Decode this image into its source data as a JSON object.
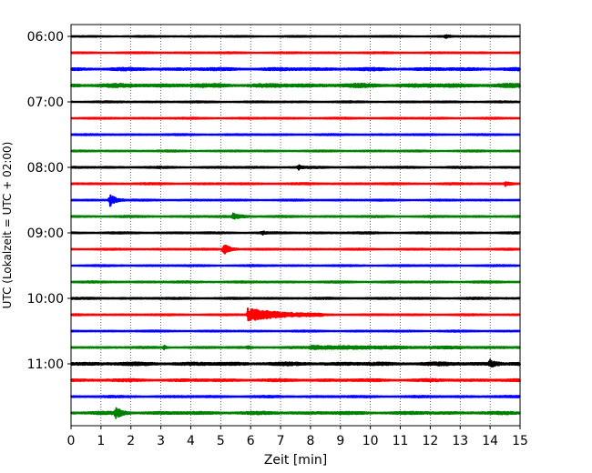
{
  "chart_data": {
    "type": "line",
    "title": "",
    "xlabel": "Zeit  [min]",
    "ylabel": "UTC (Lokalzeit = UTC + 02:00)",
    "xlim": [
      0,
      15
    ],
    "x_ticks": [
      "0",
      "1",
      "2",
      "3",
      "4",
      "5",
      "6",
      "7",
      "8",
      "9",
      "10",
      "11",
      "12",
      "13",
      "14",
      "15"
    ],
    "y_ticks": [
      "06:00",
      "07:00",
      "08:00",
      "09:00",
      "10:00",
      "11:00"
    ],
    "grid": "vertical dotted",
    "trace_interval_minutes": 15,
    "color_cycle": [
      "#000000",
      "#ff0000",
      "#0000ff",
      "#008000"
    ],
    "traces": [
      {
        "start": "06:00",
        "color": "#000000",
        "noise": 0.25,
        "events": [
          {
            "t": 12.5,
            "amp": 0.9,
            "dur": 0.3
          }
        ]
      },
      {
        "start": "06:15",
        "color": "#ff0000",
        "noise": 0.3,
        "events": []
      },
      {
        "start": "06:30",
        "color": "#0000ff",
        "noise": 0.6,
        "events": []
      },
      {
        "start": "06:45",
        "color": "#008000",
        "noise": 0.8,
        "events": []
      },
      {
        "start": "07:00",
        "color": "#000000",
        "noise": 0.3,
        "events": []
      },
      {
        "start": "07:15",
        "color": "#ff0000",
        "noise": 0.3,
        "events": []
      },
      {
        "start": "07:30",
        "color": "#0000ff",
        "noise": 0.3,
        "events": []
      },
      {
        "start": "07:45",
        "color": "#008000",
        "noise": 0.3,
        "events": []
      },
      {
        "start": "08:00",
        "color": "#000000",
        "noise": 0.35,
        "events": [
          {
            "t": 7.6,
            "amp": 1.2,
            "dur": 0.2
          }
        ]
      },
      {
        "start": "08:15",
        "color": "#ff0000",
        "noise": 0.35,
        "events": [
          {
            "t": 14.5,
            "amp": 1.0,
            "dur": 0.4
          }
        ]
      },
      {
        "start": "08:30",
        "color": "#0000ff",
        "noise": 0.3,
        "events": [
          {
            "t": 1.3,
            "amp": 3.0,
            "dur": 0.5
          }
        ]
      },
      {
        "start": "08:45",
        "color": "#008000",
        "noise": 0.35,
        "events": [
          {
            "t": 5.4,
            "amp": 1.3,
            "dur": 0.8
          }
        ]
      },
      {
        "start": "09:00",
        "color": "#000000",
        "noise": 0.35,
        "events": [
          {
            "t": 6.4,
            "amp": 0.8,
            "dur": 0.2
          }
        ]
      },
      {
        "start": "09:15",
        "color": "#ff0000",
        "noise": 0.3,
        "events": [
          {
            "t": 5.1,
            "amp": 3.0,
            "dur": 0.5
          }
        ]
      },
      {
        "start": "09:30",
        "color": "#0000ff",
        "noise": 0.3,
        "events": []
      },
      {
        "start": "09:45",
        "color": "#008000",
        "noise": 0.35,
        "events": []
      },
      {
        "start": "10:00",
        "color": "#000000",
        "noise": 0.35,
        "events": []
      },
      {
        "start": "10:15",
        "color": "#ff0000",
        "noise": 0.3,
        "events": [
          {
            "t": 5.9,
            "amp": 3.0,
            "dur": 2.5
          }
        ]
      },
      {
        "start": "10:30",
        "color": "#0000ff",
        "noise": 0.3,
        "events": []
      },
      {
        "start": "10:45",
        "color": "#008000",
        "noise": 0.35,
        "events": [
          {
            "t": 3.1,
            "amp": 1.0,
            "dur": 0.2
          },
          {
            "t": 5.9,
            "amp": 0.8,
            "dur": 0.2
          },
          {
            "t": 8.0,
            "amp": 0.7,
            "dur": 7.0
          }
        ]
      },
      {
        "start": "11:00",
        "color": "#000000",
        "noise": 0.7,
        "events": [
          {
            "t": 14.0,
            "amp": 2.0,
            "dur": 0.4
          }
        ]
      },
      {
        "start": "11:15",
        "color": "#ff0000",
        "noise": 0.55,
        "events": []
      },
      {
        "start": "11:30",
        "color": "#0000ff",
        "noise": 0.4,
        "events": []
      },
      {
        "start": "11:45",
        "color": "#008000",
        "noise": 0.6,
        "events": [
          {
            "t": 1.5,
            "amp": 2.5,
            "dur": 0.5
          }
        ]
      }
    ]
  }
}
